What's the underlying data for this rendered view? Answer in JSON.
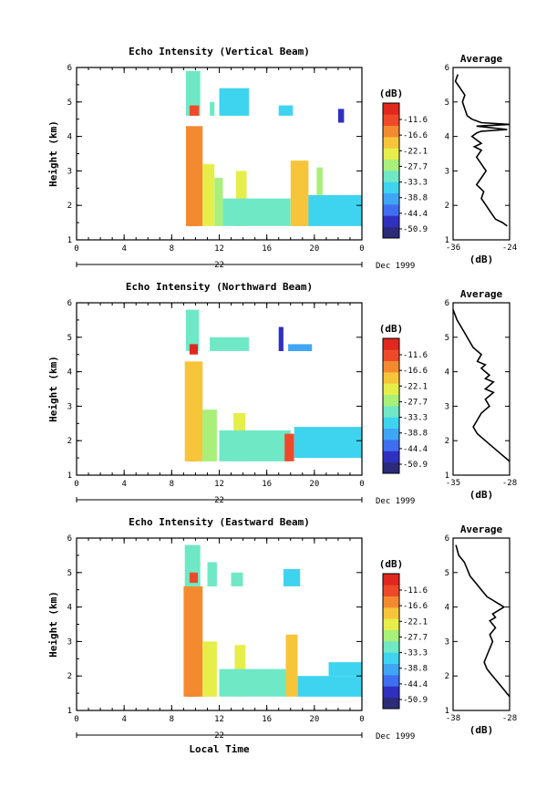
{
  "chart_data": [
    {
      "type": "heatmap",
      "title": "Echo Intensity (Vertical Beam)",
      "ylabel": "Height (km)",
      "xlim": [
        0,
        24
      ],
      "ylim": [
        1,
        6
      ],
      "x_ticks": [
        "0",
        "4",
        "8",
        "12",
        "16",
        "20",
        "0"
      ],
      "y_ticks": [
        "1",
        "2",
        "3",
        "4",
        "5",
        "6"
      ],
      "date_label": "22",
      "month_label": "Dec 1999",
      "colorbar": {
        "unit": "(dB)",
        "range": [
          -50.9,
          -11.6
        ],
        "labels": [
          "-11.6",
          "-16.6",
          "-22.1",
          "-27.7",
          "-33.3",
          "-38.8",
          "-44.4",
          "-50.9"
        ]
      },
      "echo_regions": [
        {
          "x0": 9.5,
          "x1": 10.2,
          "y0": 1.4,
          "y1": 4.2,
          "level": -12
        },
        {
          "x0": 9.2,
          "x1": 10.6,
          "y0": 1.4,
          "y1": 4.3,
          "level": -20
        },
        {
          "x0": 10.6,
          "x1": 11.6,
          "y0": 1.4,
          "y1": 3.2,
          "level": -25
        },
        {
          "x0": 11.6,
          "x1": 12.3,
          "y0": 1.4,
          "y1": 2.8,
          "level": -30
        },
        {
          "x0": 13.4,
          "x1": 14.3,
          "y0": 1.4,
          "y1": 3.0,
          "level": -26
        },
        {
          "x0": 12.3,
          "x1": 18.0,
          "y0": 1.4,
          "y1": 2.2,
          "level": -33
        },
        {
          "x0": 18.0,
          "x1": 19.5,
          "y0": 1.4,
          "y1": 3.3,
          "level": -24
        },
        {
          "x0": 19.5,
          "x1": 24.0,
          "y0": 1.4,
          "y1": 2.3,
          "level": -36
        },
        {
          "x0": 20.2,
          "x1": 20.7,
          "y0": 2.3,
          "y1": 3.1,
          "level": -30
        },
        {
          "x0": 9.2,
          "x1": 10.4,
          "y0": 4.6,
          "y1": 5.9,
          "level": -34
        },
        {
          "x0": 9.5,
          "x1": 10.3,
          "y0": 4.6,
          "y1": 4.9,
          "level": -15
        },
        {
          "x0": 11.2,
          "x1": 11.6,
          "y0": 4.6,
          "y1": 5.0,
          "level": -33
        },
        {
          "x0": 12.0,
          "x1": 14.5,
          "y0": 4.6,
          "y1": 5.4,
          "level": -36
        },
        {
          "x0": 17.0,
          "x1": 18.2,
          "y0": 4.6,
          "y1": 4.9,
          "level": -36
        },
        {
          "x0": 22.0,
          "x1": 22.5,
          "y0": 4.4,
          "y1": 4.8,
          "level": -45
        }
      ],
      "average_profile": {
        "title": "Average",
        "xlabel": "(dB)",
        "x_ticks": [
          "-36",
          "-24"
        ],
        "xlim": [
          -36,
          -24
        ],
        "ylim": [
          1,
          6
        ],
        "y_ticks": [
          "1",
          "2",
          "3",
          "4",
          "5",
          "6"
        ],
        "x": [
          -24.5,
          -25.5,
          -27,
          -28,
          -29,
          -30,
          -29.5,
          -31,
          -30,
          -29,
          -30,
          -31,
          -30,
          -31.5,
          -30,
          -31,
          -32,
          -31,
          -30,
          -24.5,
          -31,
          -24,
          -30,
          -32,
          -33,
          -33.5,
          -34,
          -33.5,
          -34.5,
          -35.5,
          -35
        ],
        "y": [
          1.4,
          1.5,
          1.6,
          1.8,
          2.0,
          2.2,
          2.4,
          2.6,
          2.8,
          3.0,
          3.2,
          3.4,
          3.6,
          3.7,
          3.8,
          3.9,
          4.0,
          4.1,
          4.15,
          4.2,
          4.3,
          4.35,
          4.4,
          4.5,
          4.6,
          4.8,
          5.0,
          5.2,
          5.4,
          5.6,
          5.8
        ]
      }
    },
    {
      "type": "heatmap",
      "title": "Echo Intensity (Northward Beam)",
      "ylabel": "Height (km)",
      "xlim": [
        0,
        24
      ],
      "ylim": [
        1,
        6
      ],
      "x_ticks": [
        "0",
        "4",
        "8",
        "12",
        "16",
        "20",
        "0"
      ],
      "y_ticks": [
        "1",
        "2",
        "3",
        "4",
        "5",
        "6"
      ],
      "date_label": "22",
      "month_label": "Dec 1999",
      "colorbar": {
        "unit": "(dB)",
        "range": [
          -50.9,
          -11.6
        ],
        "labels": [
          "-11.6",
          "-16.6",
          "-22.1",
          "-27.7",
          "-33.3",
          "-38.8",
          "-44.4",
          "-50.9"
        ]
      },
      "echo_regions": [
        {
          "x0": 9.3,
          "x1": 10.2,
          "y0": 1.4,
          "y1": 4.2,
          "level": -13
        },
        {
          "x0": 9.1,
          "x1": 10.6,
          "y0": 1.4,
          "y1": 4.3,
          "level": -22
        },
        {
          "x0": 10.6,
          "x1": 11.8,
          "y0": 1.4,
          "y1": 2.9,
          "level": -28
        },
        {
          "x0": 13.2,
          "x1": 14.2,
          "y0": 1.4,
          "y1": 2.8,
          "level": -27
        },
        {
          "x0": 12.0,
          "x1": 18.0,
          "y0": 1.4,
          "y1": 2.3,
          "level": -34
        },
        {
          "x0": 17.5,
          "x1": 18.3,
          "y0": 1.4,
          "y1": 2.2,
          "level": -16
        },
        {
          "x0": 18.3,
          "x1": 24.0,
          "y0": 1.5,
          "y1": 2.4,
          "level": -37
        },
        {
          "x0": 9.2,
          "x1": 10.3,
          "y0": 4.6,
          "y1": 5.8,
          "level": -33
        },
        {
          "x0": 9.5,
          "x1": 10.2,
          "y0": 4.5,
          "y1": 4.8,
          "level": -14
        },
        {
          "x0": 11.2,
          "x1": 14.5,
          "y0": 4.6,
          "y1": 5.0,
          "level": -34
        },
        {
          "x0": 17.0,
          "x1": 17.4,
          "y0": 4.6,
          "y1": 5.3,
          "level": -45
        },
        {
          "x0": 17.8,
          "x1": 19.8,
          "y0": 4.6,
          "y1": 4.8,
          "level": -40
        }
      ],
      "average_profile": {
        "title": "Average",
        "xlabel": "(dB)",
        "x_ticks": [
          "-35",
          "-28"
        ],
        "xlim": [
          -35,
          -28
        ],
        "ylim": [
          1,
          6
        ],
        "y_ticks": [
          "1",
          "2",
          "3",
          "4",
          "5",
          "6"
        ],
        "x": [
          -28,
          -28.5,
          -29,
          -30,
          -31,
          -32,
          -32.5,
          -32,
          -31.5,
          -31,
          -30.5,
          -31,
          -30,
          -31,
          -30.5,
          -30,
          -31,
          -30.5,
          -31,
          -31.5,
          -31,
          -32,
          -31.5,
          -32.5,
          -33,
          -33.5,
          -34,
          -34.5,
          -35
        ],
        "y": [
          1.4,
          1.5,
          1.6,
          1.8,
          2.0,
          2.2,
          2.4,
          2.6,
          2.8,
          2.9,
          3.0,
          3.2,
          3.4,
          3.5,
          3.6,
          3.7,
          3.8,
          3.9,
          4.0,
          4.1,
          4.2,
          4.3,
          4.5,
          4.7,
          4.9,
          5.1,
          5.3,
          5.5,
          5.8
        ]
      }
    },
    {
      "type": "heatmap",
      "title": "Echo Intensity (Eastward Beam)",
      "ylabel": "Height (km)",
      "xlabel": "Local Time",
      "xlim": [
        0,
        24
      ],
      "ylim": [
        1,
        6
      ],
      "x_ticks": [
        "0",
        "4",
        "8",
        "12",
        "16",
        "20",
        "0"
      ],
      "y_ticks": [
        "1",
        "2",
        "3",
        "4",
        "5",
        "6"
      ],
      "date_label": "22",
      "month_label": "Dec 1999",
      "colorbar": {
        "unit": "(dB)",
        "range": [
          -50.9,
          -11.6
        ],
        "labels": [
          "-11.6",
          "-16.6",
          "-22.1",
          "-27.7",
          "-33.3",
          "-38.8",
          "-44.4",
          "-50.9"
        ]
      },
      "echo_regions": [
        {
          "x0": 9.3,
          "x1": 10.1,
          "y0": 1.4,
          "y1": 4.5,
          "level": -13
        },
        {
          "x0": 9.0,
          "x1": 10.6,
          "y0": 1.4,
          "y1": 4.6,
          "level": -21
        },
        {
          "x0": 10.6,
          "x1": 11.8,
          "y0": 1.4,
          "y1": 3.0,
          "level": -27
        },
        {
          "x0": 13.3,
          "x1": 14.2,
          "y0": 1.4,
          "y1": 2.9,
          "level": -25
        },
        {
          "x0": 12.0,
          "x1": 18.0,
          "y0": 1.4,
          "y1": 2.2,
          "level": -34
        },
        {
          "x0": 17.6,
          "x1": 18.6,
          "y0": 1.4,
          "y1": 3.2,
          "level": -24
        },
        {
          "x0": 18.6,
          "x1": 24.0,
          "y0": 1.4,
          "y1": 2.0,
          "level": -36
        },
        {
          "x0": 21.2,
          "x1": 24.0,
          "y0": 2.0,
          "y1": 2.4,
          "level": -37
        },
        {
          "x0": 9.1,
          "x1": 10.4,
          "y0": 4.6,
          "y1": 5.8,
          "level": -33
        },
        {
          "x0": 9.5,
          "x1": 10.2,
          "y0": 4.7,
          "y1": 5.0,
          "level": -16
        },
        {
          "x0": 11.0,
          "x1": 11.8,
          "y0": 4.6,
          "y1": 5.3,
          "level": -34
        },
        {
          "x0": 13.0,
          "x1": 14.0,
          "y0": 4.6,
          "y1": 5.0,
          "level": -32
        },
        {
          "x0": 17.4,
          "x1": 18.8,
          "y0": 4.6,
          "y1": 5.1,
          "level": -37
        }
      ],
      "average_profile": {
        "title": "Average",
        "xlabel": "(dB)",
        "x_ticks": [
          "-38",
          "-28"
        ],
        "xlim": [
          -38,
          -28
        ],
        "ylim": [
          1,
          6
        ],
        "y_ticks": [
          "1",
          "2",
          "3",
          "4",
          "5",
          "6"
        ],
        "x": [
          -28,
          -28.5,
          -29,
          -30,
          -31,
          -32,
          -32.5,
          -32,
          -31.5,
          -31,
          -31.5,
          -31,
          -30.5,
          -31,
          -31.5,
          -30.5,
          -31,
          -30,
          -29,
          -30,
          -31,
          -32,
          -33,
          -34,
          -35,
          -35.5,
          -36,
          -37,
          -37.5
        ],
        "y": [
          1.4,
          1.5,
          1.6,
          1.8,
          2.0,
          2.2,
          2.4,
          2.6,
          2.8,
          3.0,
          3.2,
          3.3,
          3.4,
          3.5,
          3.6,
          3.7,
          3.8,
          3.9,
          4.0,
          4.1,
          4.2,
          4.3,
          4.5,
          4.7,
          4.9,
          5.1,
          5.3,
          5.5,
          5.8
        ]
      }
    }
  ],
  "colors": {
    "colormap": [
      "#2b2b7a",
      "#3030c0",
      "#3f6ff0",
      "#3fa6f5",
      "#3ed4f0",
      "#6fe8c6",
      "#a8f07a",
      "#e6ee4a",
      "#f7c53a",
      "#f48a30",
      "#ee4a2a",
      "#e0281e"
    ]
  }
}
